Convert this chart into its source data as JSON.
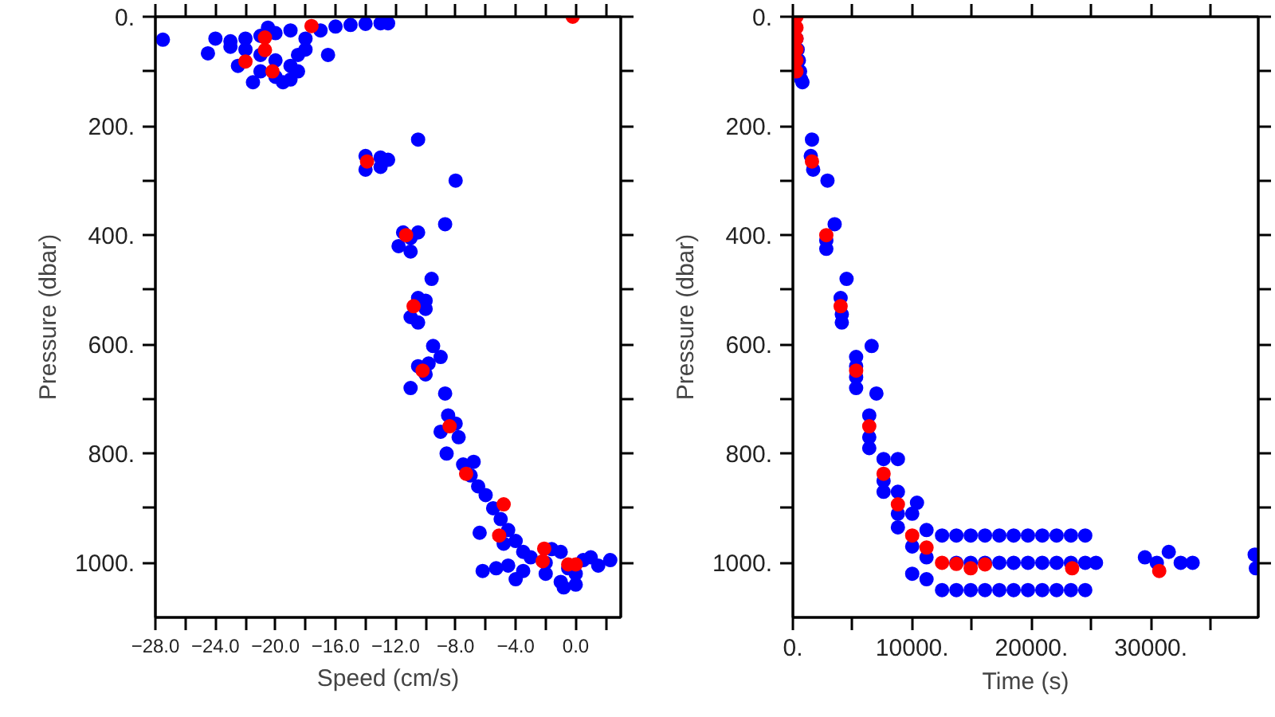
{
  "chart_data": [
    {
      "type": "scatter",
      "xlabel": "Speed (cm/s)",
      "ylabel": "Pressure (dbar)",
      "marker": "circle",
      "xlim": [
        -28,
        3
      ],
      "ylim": [
        1100,
        0
      ],
      "xticks": [
        {
          "value": -28,
          "label": "−28.0"
        },
        {
          "value": -26,
          "label": null
        },
        {
          "value": -24,
          "label": "−24.0"
        },
        {
          "value": -22,
          "label": null
        },
        {
          "value": -20,
          "label": "−20.0"
        },
        {
          "value": -18,
          "label": null
        },
        {
          "value": -16,
          "label": "−16.0"
        },
        {
          "value": -14,
          "label": null
        },
        {
          "value": -12,
          "label": "−12.0"
        },
        {
          "value": -10,
          "label": null
        },
        {
          "value": -8,
          "label": "−8.0"
        },
        {
          "value": -6,
          "label": null
        },
        {
          "value": -4,
          "label": "−4.0"
        },
        {
          "value": -2,
          "label": null
        },
        {
          "value": 0,
          "label": "0.0"
        },
        {
          "value": 2,
          "label": null
        }
      ],
      "yticks": [
        {
          "value": 0,
          "label": "0."
        },
        {
          "value": 100,
          "label": null
        },
        {
          "value": 200,
          "label": "200."
        },
        {
          "value": 300,
          "label": null
        },
        {
          "value": 400,
          "label": "400."
        },
        {
          "value": 500,
          "label": null
        },
        {
          "value": 600,
          "label": "600."
        },
        {
          "value": 700,
          "label": null
        },
        {
          "value": 800,
          "label": "800."
        },
        {
          "value": 900,
          "label": null
        },
        {
          "value": 1000,
          "label": "1000."
        }
      ],
      "series": [
        {
          "color": "#0000ff",
          "x": [
            -22,
            -21,
            -20,
            -19,
            -22,
            -21,
            -20,
            -19,
            -21,
            -20,
            -19,
            -21.5,
            -19.5,
            -22.5,
            -18.5,
            -18,
            -18,
            -17,
            -16,
            -15,
            -14,
            -13,
            -12.5,
            -23,
            -24,
            -20.5,
            -18.5,
            -16.5,
            -24.5,
            -27.5,
            -23,
            -14,
            -13,
            -12.5,
            -14,
            -13,
            -10.5,
            -8,
            -11.5,
            -11,
            -11.8,
            -11,
            -10.5,
            -8.7,
            -9.6,
            -10.5,
            -10,
            -11,
            -10.5,
            -10,
            -9.5,
            -9,
            -10.5,
            -10,
            -9.8,
            -11,
            -8.5,
            -8,
            -9,
            -7.8,
            -8.7,
            -8.6,
            -7.5,
            -7,
            -6.5,
            -6.8,
            -6,
            -5.5,
            -5,
            -4.5,
            -4.8,
            -6.4,
            -4,
            -3.5,
            -3,
            -2,
            -1,
            -0.5,
            0,
            -1,
            0.5,
            1,
            1.5,
            -2,
            -3.5,
            -4.5,
            -5.3,
            -6.2,
            -4,
            -0.8,
            0,
            -1.6,
            2.3
          ],
          "values": [
            40,
            35,
            30,
            25,
            60,
            70,
            80,
            90,
            100,
            110,
            115,
            120,
            120,
            90,
            100,
            60,
            40,
            25,
            18,
            15,
            13,
            12,
            12,
            45,
            40,
            20,
            70,
            70,
            67,
            42,
            55,
            255,
            258,
            262,
            280,
            275,
            225,
            300,
            395,
            405,
            420,
            430,
            395,
            380,
            480,
            515,
            520,
            550,
            560,
            535,
            603,
            623,
            640,
            655,
            635,
            680,
            730,
            745,
            760,
            770,
            690,
            800,
            820,
            840,
            860,
            815,
            876,
            900,
            920,
            940,
            965,
            945,
            960,
            980,
            990,
            1000,
            980,
            1010,
            1020,
            1035,
            995,
            990,
            1005,
            1020,
            1015,
            1005,
            1010,
            1015,
            1030,
            1045,
            1040,
            975,
            995
          ]
        },
        {
          "color": "#ff0000",
          "x": [
            -0.2,
            -17.6,
            -20.7,
            -20.7,
            -22,
            -20.2,
            -13.9,
            -11.3,
            -10.8,
            -10.2,
            -8.4,
            -7.3,
            -4.8,
            -5.1,
            -2.1,
            -2.2,
            -0.5,
            0
          ],
          "values": [
            0,
            17,
            38,
            61,
            82,
            100,
            265,
            400,
            530,
            648,
            750,
            837,
            893,
            950,
            974,
            997,
            1003,
            1003
          ]
        }
      ]
    },
    {
      "type": "scatter",
      "xlabel": "Time (s)",
      "ylabel": "Pressure (dbar)",
      "marker": "circle",
      "xlim": [
        0,
        39000
      ],
      "ylim": [
        1100,
        0
      ],
      "xticks": [
        {
          "value": 0,
          "label": "0."
        },
        {
          "value": 5000,
          "label": null
        },
        {
          "value": 10000,
          "label": "10000."
        },
        {
          "value": 15000,
          "label": null
        },
        {
          "value": 20000,
          "label": "20000."
        },
        {
          "value": 25000,
          "label": null
        },
        {
          "value": 30000,
          "label": "30000."
        },
        {
          "value": 35000,
          "label": null
        }
      ],
      "yticks": [
        {
          "value": 0,
          "label": "0."
        },
        {
          "value": 100,
          "label": null
        },
        {
          "value": 200,
          "label": "200."
        },
        {
          "value": 300,
          "label": null
        },
        {
          "value": 400,
          "label": "400."
        },
        {
          "value": 500,
          "label": null
        },
        {
          "value": 600,
          "label": "600."
        },
        {
          "value": 700,
          "label": null
        },
        {
          "value": 800,
          "label": "800."
        },
        {
          "value": 900,
          "label": null
        },
        {
          "value": 1000,
          "label": "1000."
        }
      ],
      "series": [
        {
          "color": "#0000ff",
          "x": [
            300,
            400,
            500,
            600,
            700,
            800,
            1600,
            1500,
            1700,
            2900,
            2800,
            2800,
            3500,
            4000,
            4100,
            4100,
            4500,
            6600,
            5300,
            5300,
            5300,
            5300,
            6400,
            6400,
            6400,
            7000,
            7600,
            7600,
            7600,
            8800,
            8800,
            8800,
            8800,
            10000,
            10000,
            10000,
            10400,
            11200,
            11200,
            11200,
            12500,
            12500,
            13700,
            13700,
            13700,
            14900,
            14900,
            14900,
            16100,
            16100,
            16100,
            17300,
            17300,
            17300,
            18500,
            18500,
            18500,
            19700,
            19700,
            19700,
            20900,
            20900,
            20900,
            22100,
            22100,
            22100,
            23300,
            23300,
            23300,
            24500,
            24500,
            24500,
            25400,
            29500,
            30500,
            31500,
            32500,
            33500,
            38700,
            38800
          ],
          "values": [
            40,
            60,
            80,
            100,
            115,
            120,
            225,
            255,
            280,
            300,
            410,
            425,
            380,
            515,
            545,
            560,
            480,
            603,
            623,
            640,
            660,
            680,
            730,
            770,
            790,
            690,
            810,
            850,
            870,
            810,
            870,
            910,
            935,
            910,
            970,
            1020,
            890,
            940,
            990,
            1030,
            950,
            1050,
            950,
            1000,
            1050,
            950,
            1000,
            1050,
            950,
            1000,
            1050,
            950,
            1000,
            1050,
            950,
            1000,
            1050,
            950,
            1000,
            1050,
            950,
            1000,
            1050,
            950,
            1000,
            1050,
            950,
            1000,
            1050,
            950,
            1000,
            1050,
            1000,
            990,
            1000,
            980,
            1000,
            1000,
            985,
            1010
          ]
        },
        {
          "color": "#ff0000",
          "x": [
            300,
            300,
            300,
            300,
            300,
            300,
            1600,
            2800,
            4000,
            5300,
            6400,
            7600,
            8800,
            10000,
            11200,
            12500,
            13700,
            14900,
            16100,
            23400,
            30700
          ],
          "values": [
            0,
            20,
            40,
            60,
            80,
            100,
            265,
            400,
            530,
            648,
            750,
            837,
            893,
            950,
            972,
            1000,
            1002,
            1010,
            1003,
            1010,
            1015
          ]
        }
      ]
    }
  ]
}
